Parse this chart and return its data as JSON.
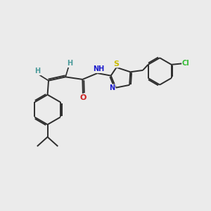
{
  "bg_color": "#ebebeb",
  "bond_color": "#2d2d2d",
  "atom_colors": {
    "H": "#4a9a9a",
    "N": "#1a1acc",
    "O": "#cc2020",
    "S": "#ccbb00",
    "Cl": "#33bb33"
  },
  "font_size": 7.0,
  "bond_width": 1.4
}
